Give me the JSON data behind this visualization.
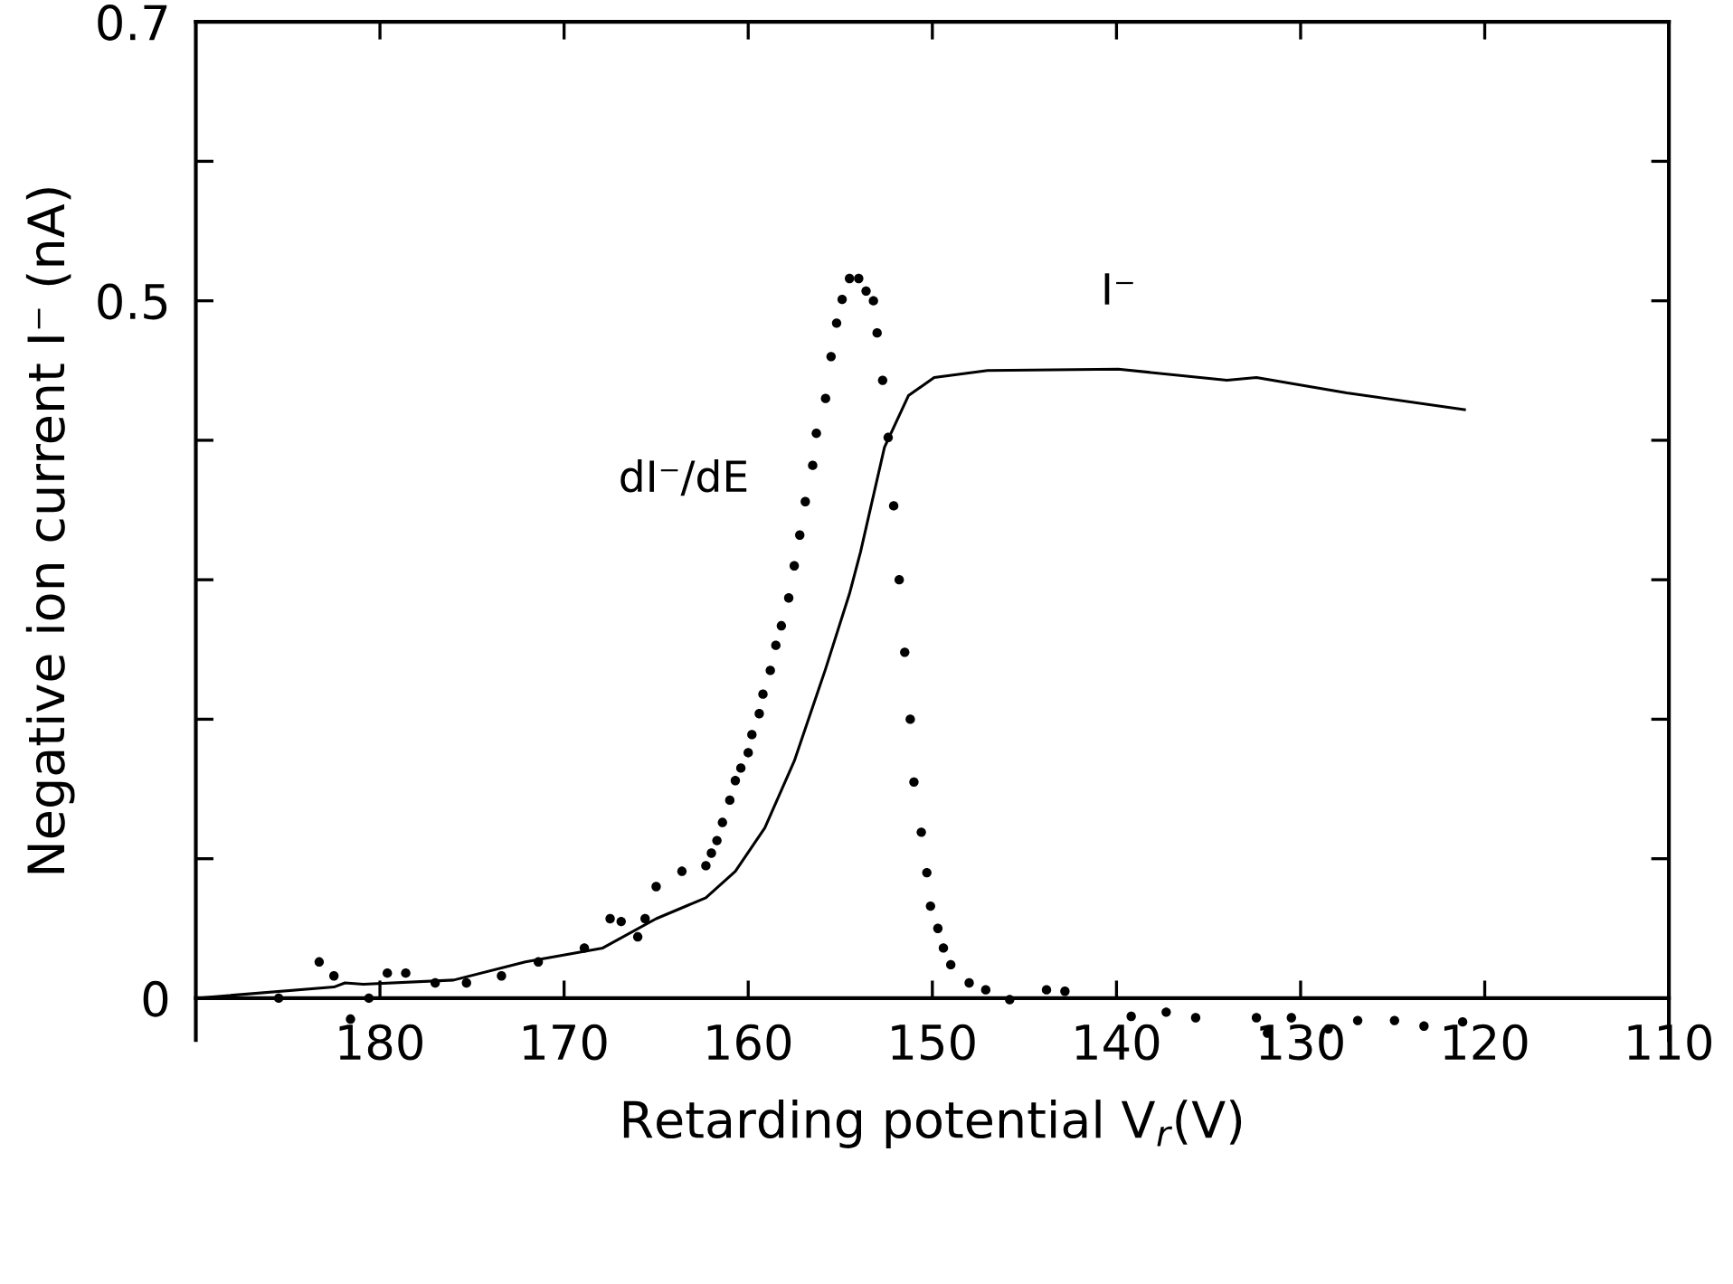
{
  "chart_data": {
    "type": "line",
    "xlabel": "Retarding potential V$_{r}$(V)",
    "ylabel": "Negative ion current I⁻ (nA)",
    "xlim": [
      190,
      110
    ],
    "xticks": [
      180,
      170,
      160,
      150,
      140,
      130,
      120,
      110
    ],
    "ylim": [
      -0.03,
      0.7
    ],
    "yticks": [
      0,
      {
        "value": 0.1,
        "label": null
      },
      {
        "value": 0.2,
        "label": null
      },
      {
        "value": 0.3,
        "label": null
      },
      {
        "value": 0.4,
        "label": null
      },
      0.5,
      {
        "value": 0.6,
        "label": null
      },
      0.7
    ],
    "grid": false,
    "legend": false,
    "series": [
      {
        "name": "I⁻",
        "type": "line",
        "color": "#000000",
        "line_style": "solid",
        "marker": "none",
        "x": [
          190,
          182.5,
          181.9,
          180.9,
          176,
          172.1,
          167.9,
          165,
          162.3,
          160.7,
          159.1,
          157.5,
          155.8,
          154.5,
          153.9,
          152.6,
          151.3,
          149.9,
          147,
          139.9,
          134,
          132.4,
          127.5,
          121.1
        ],
        "values": [
          0,
          0.008,
          0.011,
          0.01,
          0.013,
          0.026,
          0.036,
          0.057,
          0.072,
          0.091,
          0.122,
          0.17,
          0.236,
          0.29,
          0.32,
          0.395,
          0.432,
          0.445,
          0.45,
          0.451,
          0.443,
          0.445,
          0.434,
          0.422
        ]
      },
      {
        "name": "dI⁻/dE",
        "type": "scatter",
        "color": "#000000",
        "marker": "circle",
        "x": [
          185.5,
          183.3,
          182.5,
          181.6,
          180.6,
          179.6,
          178.6,
          177,
          175.3,
          173.4,
          171.4,
          168.9,
          167.5,
          166.9,
          166,
          165.6,
          165,
          163.6,
          162.3,
          162.0,
          161.7,
          161.4,
          161.0,
          160.7,
          160.4,
          160.0,
          159.8,
          159.4,
          159.2,
          158.8,
          158.5,
          158.2,
          157.8,
          157.5,
          157.2,
          156.9,
          156.5,
          156.3,
          155.8,
          155.5,
          155.2,
          154.9,
          154.5,
          154.0,
          153.6,
          153.2,
          153.0,
          152.7,
          152.4,
          152.1,
          151.8,
          151.5,
          151.2,
          151.0,
          150.6,
          150.3,
          150.1,
          149.7,
          149.4,
          149.0,
          148.0,
          147.1,
          145.8,
          143.8,
          142.8,
          139.2,
          137.3,
          135.7,
          132.4,
          131.8,
          130.5,
          128.5,
          126.9,
          124.9,
          123.3,
          121.2
        ],
        "values": [
          0,
          0.026,
          0.016,
          -0.015,
          0,
          0.018,
          0.018,
          0.011,
          0.011,
          0.016,
          0.026,
          0.036,
          0.057,
          0.055,
          0.044,
          0.057,
          0.08,
          0.091,
          0.095,
          0.104,
          0.113,
          0.126,
          0.142,
          0.156,
          0.165,
          0.176,
          0.189,
          0.204,
          0.218,
          0.235,
          0.253,
          0.267,
          0.287,
          0.31,
          0.332,
          0.356,
          0.382,
          0.405,
          0.43,
          0.46,
          0.484,
          0.501,
          0.516,
          0.516,
          0.507,
          0.5,
          0.477,
          0.443,
          0.402,
          0.353,
          0.3,
          0.248,
          0.2,
          0.155,
          0.119,
          0.09,
          0.066,
          0.05,
          0.036,
          0.024,
          0.011,
          0.006,
          -0.001,
          0.006,
          0.005,
          -0.013,
          -0.01,
          -0.014,
          -0.014,
          -0.025,
          -0.014,
          -0.022,
          -0.016,
          -0.016,
          -0.02,
          -0.017
        ]
      }
    ]
  }
}
